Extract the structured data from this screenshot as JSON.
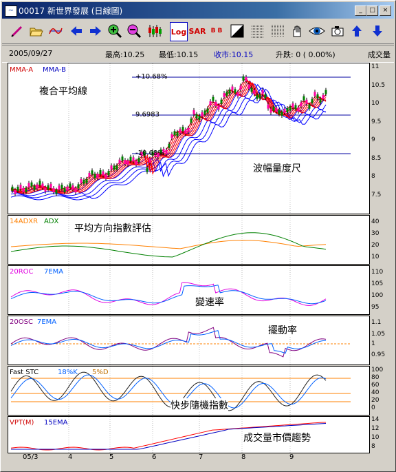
{
  "window": {
    "title": "00017 新世界發展 (日線圖)",
    "app_icon": "chart-app-icon",
    "buttons": [
      "_",
      "□",
      "×"
    ]
  },
  "toolbar": {
    "icons": [
      "pencil-icon",
      "open-folder-icon",
      "wave-icon",
      "arrow-left-icon",
      "arrow-right-icon",
      "zoom-in-icon",
      "zoom-out-icon",
      "candlestick-icon",
      "log-scale-icon",
      "sar-icon",
      "bb-icon",
      "contrast-icon",
      "grid-horizontal-icon",
      "grid-vertical-icon",
      "hand-icon",
      "eye-icon",
      "camera-icon",
      "arrow-up-icon",
      "arrow-down-icon"
    ],
    "log_label": "Log",
    "sar_label": "SAR",
    "bb_label": "B B"
  },
  "info": {
    "date": "2005/09/27",
    "high": "最高:10.25",
    "low": "最低:10.15",
    "close": "收市:10.15",
    "change": "升跌: 0 ( 0.00%)",
    "volume": "成交量"
  },
  "panels": {
    "price": {
      "legend_a": "MMA-A",
      "legend_b": "MMA-B",
      "caption": "複合平均線",
      "caption2": "波幅量度尺",
      "upper_band": "+10.68%",
      "mid_band": "9.6983",
      "lower_band": "-10.68%",
      "ticks": [
        "11",
        "10.5",
        "10",
        "9.5",
        "9",
        "8.5",
        "8",
        "7.5"
      ],
      "color_a": "#ff0000",
      "color_b": "#0000ff"
    },
    "adx": {
      "legend_a": "14ADXR",
      "legend_b": "ADX",
      "caption": "平均方向指數評估",
      "ticks": [
        "40",
        "30",
        "20",
        "10"
      ],
      "color_a": "#ff8000",
      "color_b": "#008000"
    },
    "roc": {
      "legend_a": "20ROC",
      "legend_b": "7EMA",
      "caption": "變速率",
      "ticks": [
        "110",
        "105",
        "100",
        "95"
      ],
      "color_a": "#e000e0",
      "color_b": "#0060ff"
    },
    "osc": {
      "legend_a": "20OSC",
      "legend_b": "7EMA",
      "caption": "擺動率",
      "ticks": [
        "1.1",
        "1.05",
        "1",
        "0.95"
      ],
      "color_a": "#800080",
      "color_b": "#0060ff"
    },
    "stc": {
      "legend_a": "Fast STC",
      "legend_b": "18%K",
      "legend_c": "5%D",
      "caption": "快步隨機指數",
      "ticks": [
        "100",
        "80",
        "60",
        "40",
        "20",
        "0"
      ],
      "color_a": "#202020",
      "color_b": "#0060ff"
    },
    "vpt": {
      "legend_a": "VPT(M)",
      "legend_b": "15EMA",
      "caption": "成交量市價趨勢",
      "ticks": [
        "14",
        "12",
        "10",
        "8"
      ],
      "color_a": "#ff0000",
      "color_b": "#0000c0"
    }
  },
  "xaxis": {
    "labels": [
      "05/3",
      "4",
      "5",
      "6",
      "7",
      "8",
      "9"
    ]
  }
}
